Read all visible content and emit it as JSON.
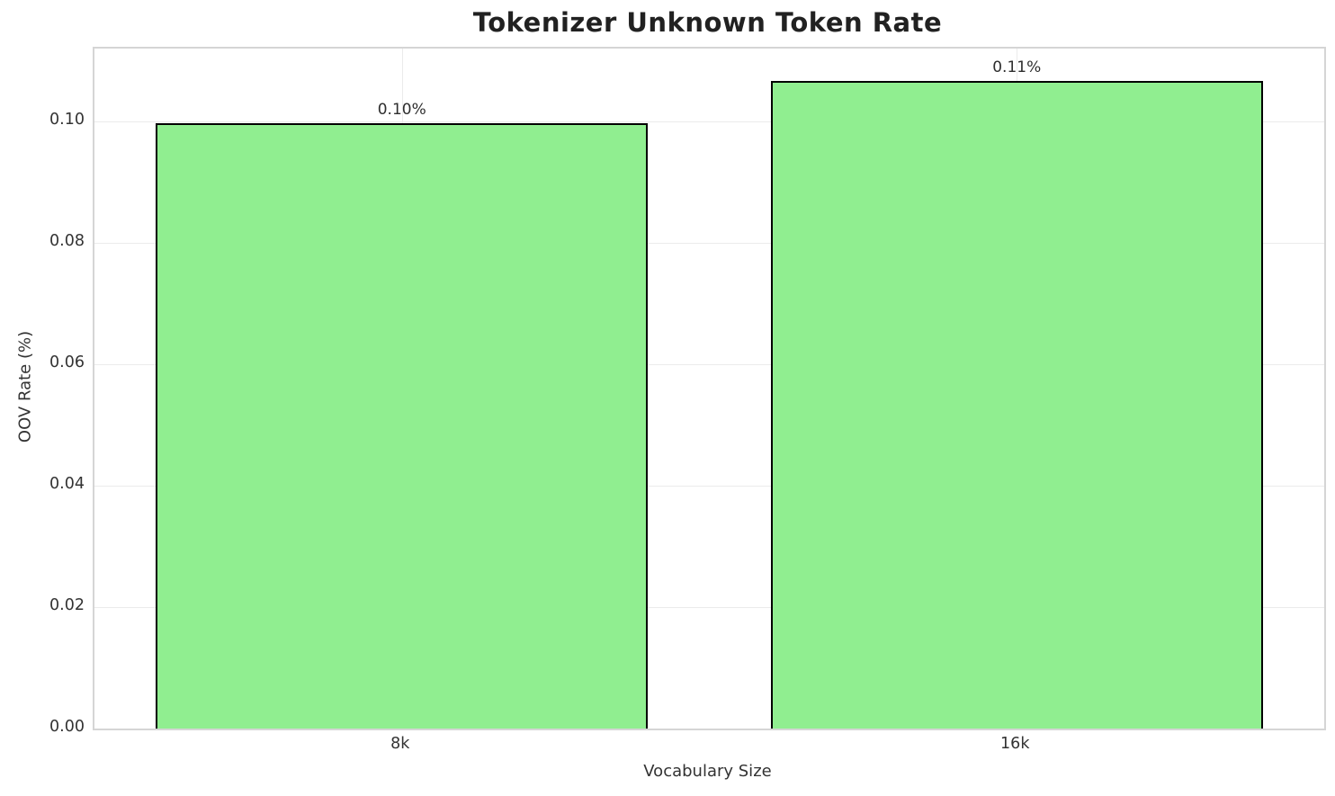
{
  "chart_data": {
    "type": "bar",
    "title": "Tokenizer Unknown Token Rate",
    "xlabel": "Vocabulary Size",
    "ylabel": "OOV Rate (%)",
    "categories": [
      "8k",
      "16k"
    ],
    "values": [
      0.0997,
      0.1066
    ],
    "bar_value_labels": [
      "0.10%",
      "0.11%"
    ],
    "ylim": [
      0,
      0.112
    ],
    "yticks": [
      0.0,
      0.02,
      0.04,
      0.06,
      0.08,
      0.1
    ],
    "ytick_labels": [
      "0.00",
      "0.02",
      "0.04",
      "0.06",
      "0.08",
      "0.10"
    ],
    "grid": true,
    "legend": "none",
    "bar_width_fraction": 0.4,
    "colors": {
      "bar_fill": "#90EE90",
      "bar_edge": "#000000",
      "grid": "#ebebeb",
      "spine": "#d5d5d5",
      "text": "#333333",
      "title": "#212121",
      "background": "#ffffff"
    }
  }
}
